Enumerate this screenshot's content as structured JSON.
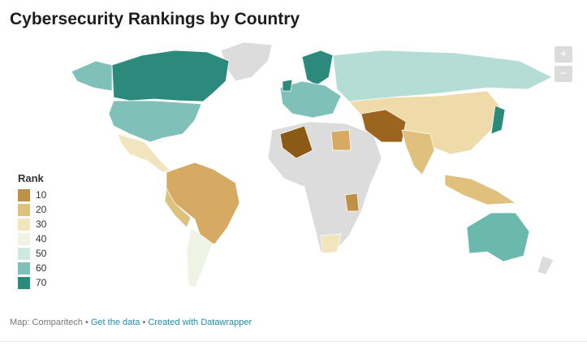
{
  "title": "Cybersecurity Rankings by Country",
  "zoom": {
    "in": "+",
    "out": "−"
  },
  "legend": {
    "title": "Rank",
    "items": [
      {
        "value": 10,
        "color": "#bf9048"
      },
      {
        "value": 20,
        "color": "#dfc07c"
      },
      {
        "value": 30,
        "color": "#f2e4bd"
      },
      {
        "value": 40,
        "color": "#eef3e3"
      },
      {
        "value": 50,
        "color": "#cde9e1"
      },
      {
        "value": 60,
        "color": "#7fc1b8"
      },
      {
        "value": 70,
        "color": "#2b8a7c"
      }
    ]
  },
  "footer": {
    "source": "Map: Comparitech",
    "separator": "•",
    "data_link": "Get the data",
    "credit": "Created with Datawrapper"
  }
}
